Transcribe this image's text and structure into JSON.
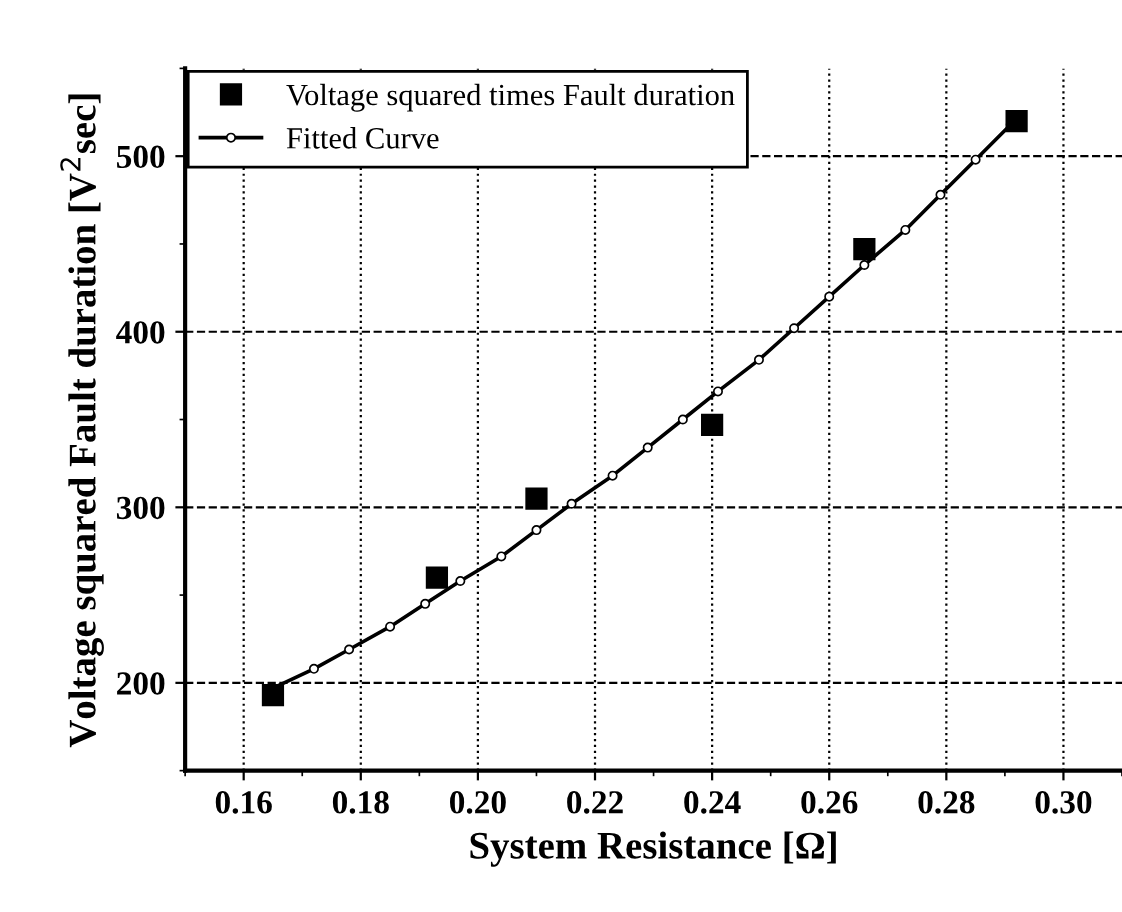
{
  "chart_data": {
    "type": "scatter",
    "xlabel": "System Resistance [Ω]",
    "ylabel": "Voltage squared Fault duration [V$^{2}$sec]",
    "xlim": [
      0.15,
      0.31
    ],
    "xticks": [
      {
        "value": 0.16,
        "label": "0.16"
      },
      {
        "value": 0.18,
        "label": "0.18"
      },
      {
        "value": 0.2,
        "label": "0.20"
      },
      {
        "value": 0.22,
        "label": "0.22"
      },
      {
        "value": 0.24,
        "label": "0.24"
      },
      {
        "value": 0.26,
        "label": "0.26"
      },
      {
        "value": 0.28,
        "label": "0.28"
      },
      {
        "value": 0.3,
        "label": "0.30"
      }
    ],
    "ylim": [
      150,
      550
    ],
    "yticks": [
      200,
      300,
      400,
      500
    ],
    "grid": true,
    "legend": "top left",
    "series": [
      {
        "name": "Voltage squared times Fault duration",
        "marker": "square",
        "color": "#000000",
        "x": [
          0.165,
          0.193,
          0.21,
          0.24,
          0.266,
          0.292
        ],
        "values": [
          193,
          260,
          305,
          347,
          447,
          520
        ]
      },
      {
        "name": "Fitted Curve",
        "type": "line",
        "marker": "circle",
        "color": "#000000",
        "x": [
          0.165,
          0.172,
          0.178,
          0.185,
          0.191,
          0.197,
          0.204,
          0.21,
          0.216,
          0.223,
          0.229,
          0.235,
          0.241,
          0.248,
          0.254,
          0.26,
          0.266,
          0.273,
          0.279,
          0.285,
          0.291
        ],
        "values": [
          197,
          208,
          219,
          232,
          245,
          258,
          272,
          287,
          302,
          318,
          334,
          350,
          366,
          384,
          402,
          420,
          438,
          458,
          478,
          498,
          518
        ]
      }
    ]
  }
}
